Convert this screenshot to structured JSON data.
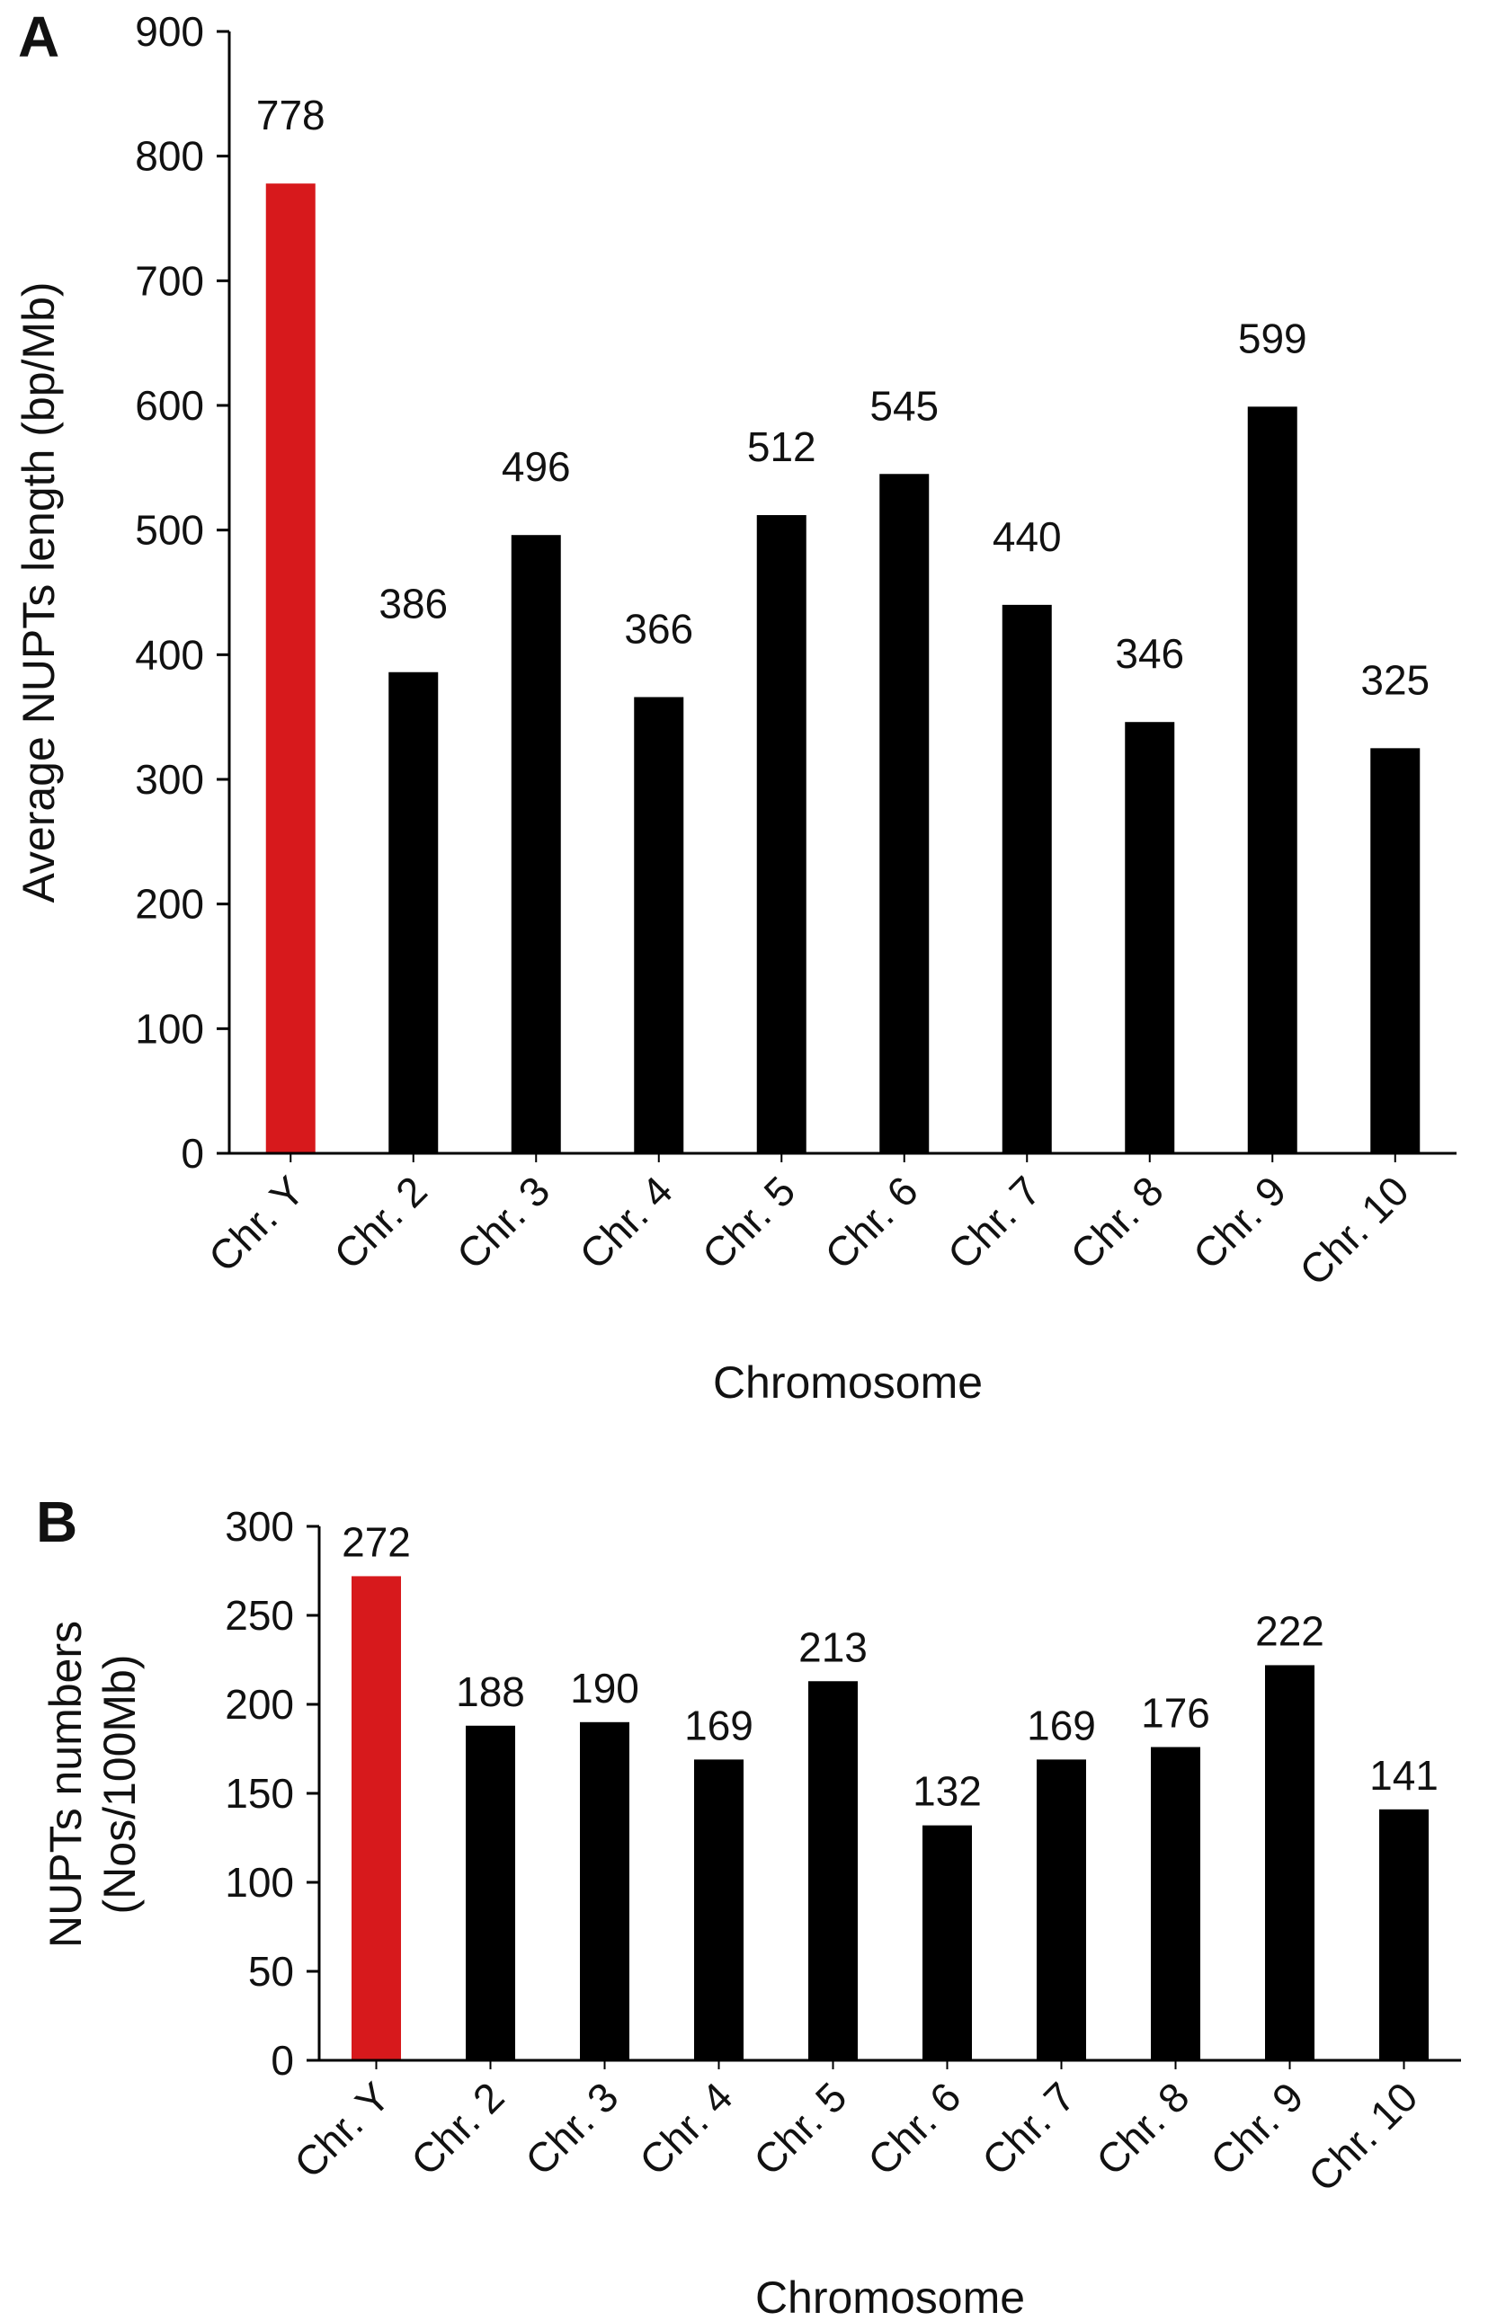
{
  "chart_data": [
    {
      "panel_label": "A",
      "type": "bar",
      "categories": [
        "Chr. Y",
        "Chr. 2",
        "Chr. 3",
        "Chr. 4",
        "Chr. 5",
        "Chr. 6",
        "Chr. 7",
        "Chr. 8",
        "Chr. 9",
        "Chr. 10"
      ],
      "values": [
        778,
        386,
        496,
        366,
        512,
        545,
        440,
        346,
        599,
        325
      ],
      "data_labels": [
        "778",
        "386",
        "496",
        "366",
        "512",
        "545",
        "440",
        "346",
        "599",
        "325"
      ],
      "bar_colors": [
        "#d7191c",
        "#000000",
        "#000000",
        "#000000",
        "#000000",
        "#000000",
        "#000000",
        "#000000",
        "#000000",
        "#000000"
      ],
      "ylabel": "Average NUPTs length (bp/Mb)",
      "xlabel": "Chromosome",
      "ylim": [
        0,
        900
      ],
      "yticks": [
        0,
        100,
        200,
        300,
        400,
        500,
        600,
        700,
        800,
        900
      ],
      "ytick_labels": [
        "0",
        "100",
        "200",
        "300",
        "400",
        "500",
        "600",
        "700",
        "800",
        "900"
      ],
      "grid": false,
      "legend": "none"
    },
    {
      "panel_label": "B",
      "type": "bar",
      "categories": [
        "Chr. Y",
        "Chr. 2",
        "Chr. 3",
        "Chr. 4",
        "Chr. 5",
        "Chr. 6",
        "Chr. 7",
        "Chr. 8",
        "Chr. 9",
        "Chr. 10"
      ],
      "values": [
        272,
        188,
        190,
        169,
        213,
        132,
        169,
        176,
        222,
        141
      ],
      "data_labels": [
        "272",
        "188",
        "190",
        "169",
        "213",
        "132",
        "169",
        "176",
        "222",
        "141"
      ],
      "bar_colors": [
        "#d7191c",
        "#000000",
        "#000000",
        "#000000",
        "#000000",
        "#000000",
        "#000000",
        "#000000",
        "#000000",
        "#000000"
      ],
      "ylabel": [
        "NUPTs numbers",
        "(Nos/100Mb)"
      ],
      "xlabel": "Chromosome",
      "ylim": [
        0,
        300
      ],
      "yticks": [
        0,
        50,
        100,
        150,
        200,
        250,
        300
      ],
      "ytick_labels": [
        "0",
        "50",
        "100",
        "150",
        "200",
        "250",
        "300"
      ],
      "grid": false,
      "legend": "none"
    }
  ]
}
